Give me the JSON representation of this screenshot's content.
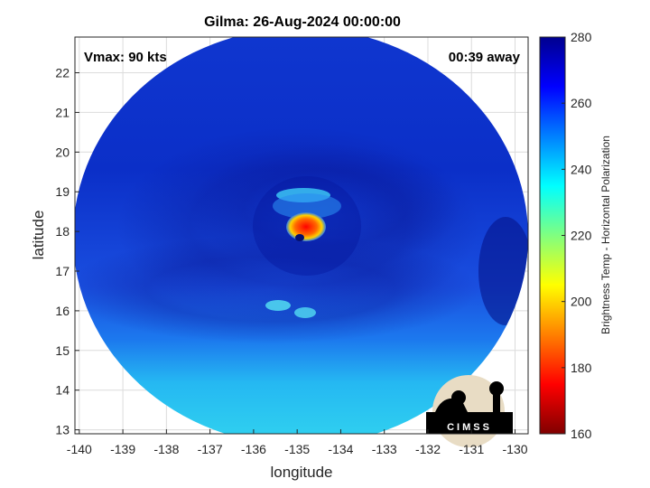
{
  "figure": {
    "title": "Gilma: 26-Aug-2024 00:00:00",
    "vmax_text": "Vmax: 90 kts",
    "away_text": "00:39 away",
    "logo_text": "CIMSS"
  },
  "map": {
    "xlabel": "longitude",
    "ylabel": "latitude",
    "xlim": [
      -140.1,
      -129.7
    ],
    "ylim": [
      12.9,
      22.9
    ],
    "xticks": [
      -140,
      -139,
      -138,
      -137,
      -136,
      -135,
      -134,
      -133,
      -132,
      -131,
      -130
    ],
    "yticks": [
      13,
      14,
      15,
      16,
      17,
      18,
      19,
      20,
      21,
      22
    ],
    "grid": true,
    "storm_center": {
      "lon": -134.85,
      "lat": 18.1
    }
  },
  "colorbar": {
    "label": "Brightness Temp - Horizontal Polarization",
    "range": [
      160,
      280
    ],
    "ticks": [
      280,
      260,
      240,
      220,
      200,
      180,
      160
    ],
    "colormap": "jet",
    "placement": "right"
  },
  "colors": {
    "dark_blue": "#00008f",
    "mid_blue": "#0a3bd8",
    "light_blue": "#1d8cf2",
    "cyan": "#2fd0f0",
    "yellow": "#f5e50f",
    "orange": "#ff8c00",
    "red": "#e00000",
    "dark_red": "#800000"
  }
}
